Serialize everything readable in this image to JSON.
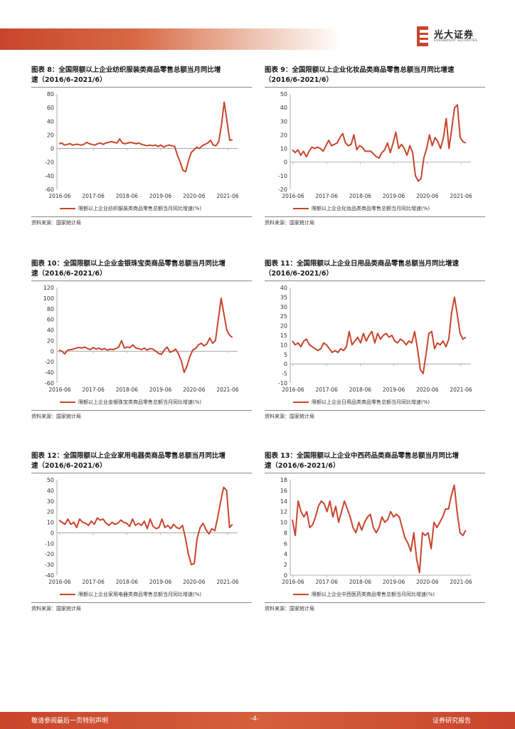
{
  "header": {
    "brand_cn": "光大证券",
    "brand_en": "EVERBRIGHT SECURITIES"
  },
  "colors": {
    "accent": "#c8452c"
  },
  "source_text": "资料来源：国家统计局",
  "footer": {
    "left": "敬请参阅最后一页特别声明",
    "page": "-4-",
    "right": "证券研究报告"
  },
  "chart_data": [
    {
      "type": "line",
      "title_line1": "图表 8：全国限额以上企业纺织服装类商品零售总额当月同比增",
      "title_line2": "速（2016/6-2021/6）",
      "legend": "限额以上企业纺织服装类商品零售总额当月同比增速(%)",
      "ylim": [
        -60,
        80
      ],
      "yticks": [
        -60,
        -40,
        -20,
        0,
        20,
        40,
        60,
        80
      ],
      "xticks": [
        "2016-06",
        "2017-06",
        "2018-06",
        "2019-06",
        "2020-06",
        "2021-06"
      ],
      "values": [
        7,
        8,
        5,
        6,
        7,
        5,
        6,
        6,
        5,
        6,
        9,
        7,
        6,
        5,
        7,
        8,
        6,
        8,
        9,
        10,
        9,
        8,
        14,
        8,
        7,
        8,
        9,
        8,
        7,
        8,
        6,
        5,
        4,
        5,
        4,
        5,
        3,
        5,
        2,
        4,
        5,
        4,
        3,
        -10,
        -20,
        -32,
        -34,
        -18,
        -6,
        -2,
        2,
        0,
        4,
        6,
        8,
        12,
        5,
        4,
        10,
        35,
        68,
        40,
        12,
        13
      ]
    },
    {
      "type": "line",
      "title_line1": "图表 9：全国限额以上企业化妆品类商品零售总额当月同比增速",
      "title_line2": "（2016/6-2021/6）",
      "legend": "限额以上企业化妆品类商品零售总额当月同比增速(%)",
      "ylim": [
        -20,
        50
      ],
      "yticks": [
        -20,
        -10,
        0,
        10,
        20,
        30,
        40,
        50
      ],
      "xticks": [
        "2016-06",
        "2017-06",
        "2018-06",
        "2019-06",
        "2020-06",
        "2021-06"
      ],
      "values": [
        9,
        7,
        9,
        5,
        8,
        4,
        8,
        11,
        10,
        11,
        10,
        8,
        12,
        16,
        12,
        13,
        14,
        18,
        21,
        14,
        12,
        13,
        20,
        9,
        12,
        11,
        8,
        8,
        8,
        6,
        4,
        3,
        7,
        9,
        14,
        7,
        14,
        22,
        10,
        13,
        10,
        5,
        12,
        7,
        -10,
        -14,
        -12,
        3,
        10,
        20,
        12,
        18,
        15,
        10,
        18,
        32,
        10,
        25,
        40,
        42,
        18,
        15,
        14
      ]
    },
    {
      "type": "line",
      "title_line1": "图表 10：全国限额以上企业金银珠宝类商品零售总额当月同比增",
      "title_line2": "速（2016/6-2021/6）",
      "legend": "限额以上企业金银珠宝类商品零售总额当月同比增速(%)",
      "ylim": [
        -60,
        120
      ],
      "yticks": [
        -60,
        -40,
        -20,
        0,
        20,
        40,
        60,
        80,
        100,
        120
      ],
      "xticks": [
        "2016-06",
        "2017-06",
        "2018-06",
        "2019-06",
        "2020-06",
        "2021-06"
      ],
      "values": [
        2,
        0,
        -5,
        2,
        3,
        4,
        6,
        7,
        6,
        8,
        5,
        3,
        7,
        4,
        6,
        3,
        5,
        2,
        4,
        3,
        5,
        8,
        20,
        6,
        8,
        7,
        12,
        6,
        5,
        3,
        6,
        2,
        5,
        4,
        0,
        -4,
        -6,
        2,
        8,
        -2,
        0,
        4,
        -5,
        -18,
        -40,
        -28,
        -10,
        2,
        5,
        12,
        15,
        10,
        14,
        25,
        15,
        20,
        60,
        100,
        70,
        40,
        30,
        26
      ]
    },
    {
      "type": "line",
      "title_line1": "图表 11：全国限额以上企业日用品类商品零售总额当月同比增速",
      "title_line2": "（2016/6-2021/6）",
      "legend": "限额以上企业日用品类商品零售总额当月同比增速(%)",
      "ylim": [
        -10,
        40
      ],
      "yticks": [
        -10,
        -5,
        0,
        5,
        10,
        15,
        20,
        25,
        30,
        35,
        40
      ],
      "xticks": [
        "2016-06",
        "2017-06",
        "2018-06",
        "2019-06",
        "2020-06",
        "2021-06"
      ],
      "values": [
        12,
        10,
        11,
        9,
        12,
        13,
        10,
        9,
        8,
        7,
        8,
        11,
        10,
        8,
        6,
        7,
        6,
        8,
        7,
        9,
        17,
        10,
        12,
        14,
        11,
        16,
        12,
        15,
        17,
        11,
        16,
        13,
        15,
        16,
        14,
        15,
        12,
        11,
        13,
        12,
        10,
        12,
        11,
        17,
        8,
        -3,
        -5,
        5,
        16,
        17,
        8,
        11,
        10,
        12,
        9,
        13,
        27,
        35,
        26,
        16,
        13,
        14
      ]
    },
    {
      "type": "line",
      "title_line1": "图表 12：全国限额以上企业家用电器类商品零售总额当月同比增",
      "title_line2": "速（2016/6-2021/6）",
      "legend": "限额以上企业家用电器类商品零售总额当月同比增速(%)",
      "ylim": [
        -40,
        50
      ],
      "yticks": [
        -40,
        -30,
        -20,
        -10,
        0,
        10,
        20,
        30,
        40,
        50
      ],
      "xticks": [
        "2016-06",
        "2017-06",
        "2018-06",
        "2019-06",
        "2020-06",
        "2021-06"
      ],
      "values": [
        12,
        10,
        8,
        13,
        8,
        10,
        5,
        13,
        10,
        9,
        7,
        11,
        8,
        14,
        12,
        13,
        9,
        7,
        10,
        8,
        9,
        12,
        10,
        9,
        6,
        13,
        7,
        9,
        7,
        11,
        4,
        13,
        6,
        4,
        5,
        13,
        5,
        7,
        4,
        8,
        5,
        4,
        7,
        -5,
        -20,
        -30,
        -29,
        -5,
        5,
        9,
        3,
        -1,
        4,
        2,
        15,
        30,
        43,
        40,
        5,
        8
      ]
    },
    {
      "type": "line",
      "title_line1": "图表 13：全国限额以上企业中西药品类商品零售总额当月同比增",
      "title_line2": "速（2016/6-2021/6）",
      "legend": "限额以上企业中西医药类商品零售总额当月同比增速(%)",
      "ylim": [
        0,
        18
      ],
      "yticks": [
        0,
        2,
        4,
        6,
        8,
        10,
        12,
        14,
        16,
        18
      ],
      "xticks": [
        "2016-06",
        "2017-06",
        "2018-06",
        "2019-06",
        "2020-06",
        "2021-06"
      ],
      "values": [
        10.5,
        7.5,
        14,
        12,
        11,
        12,
        9,
        9.5,
        11,
        13,
        14,
        13.5,
        12,
        14,
        11,
        13,
        10,
        12,
        14,
        12.5,
        11,
        9,
        8,
        10,
        8.5,
        10,
        11,
        11.5,
        9,
        8,
        9,
        11,
        10,
        10.5,
        12,
        11,
        11.5,
        11,
        9,
        7,
        6,
        4.5,
        8,
        3,
        0.5,
        8,
        7.5,
        8,
        5,
        10,
        9,
        10,
        11,
        12.5,
        12.5,
        15,
        17,
        12,
        8,
        7.5,
        8.5
      ]
    }
  ]
}
